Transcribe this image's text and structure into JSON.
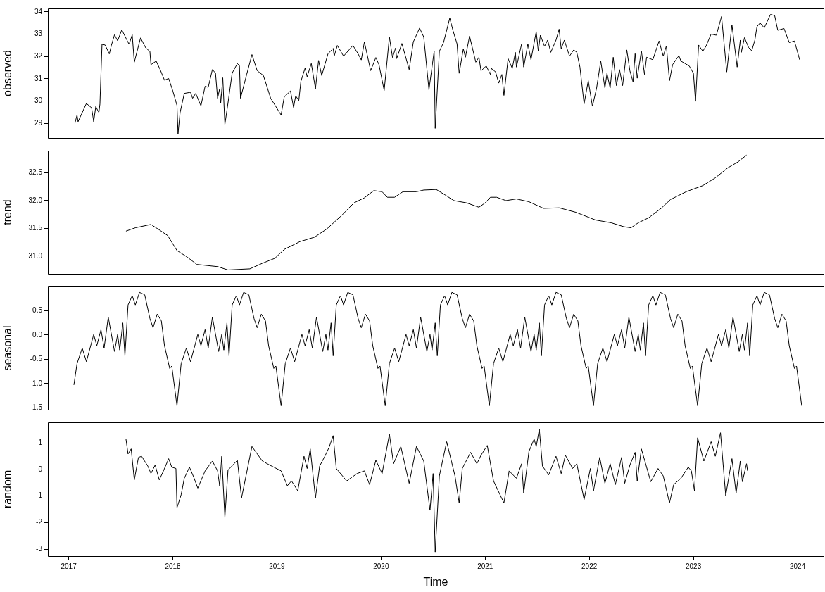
{
  "chart_data": [
    {
      "type": "line",
      "ylabel": "observed",
      "color": "#000000",
      "xlim": [
        2016.8,
        2024.25
      ],
      "xticks": [
        2017,
        2018,
        2019,
        2020,
        2021,
        2022,
        2023,
        2024
      ],
      "ylim": [
        28.34,
        34.15
      ],
      "yticks": [
        29,
        30,
        31,
        32,
        33,
        34
      ],
      "tick_labels": "y",
      "x": [
        2017.06,
        2017.08,
        2017.09,
        2017.17,
        2017.22,
        2017.24,
        2017.26,
        2017.29,
        2017.3,
        2017.32,
        2017.35,
        2017.39,
        2017.41,
        2017.44,
        2017.47,
        2017.51,
        2017.58,
        2017.61,
        2017.63,
        2017.69,
        2017.74,
        2017.78,
        2017.79,
        2017.84,
        2017.88,
        2017.92,
        2017.96,
        2018.0,
        2018.04,
        2018.05,
        2018.07,
        2018.11,
        2018.17,
        2018.19,
        2018.22,
        2018.27,
        2018.31,
        2018.34,
        2018.38,
        2018.41,
        2018.43,
        2018.45,
        2018.46,
        2018.48,
        2018.5,
        2018.53,
        2018.57,
        2018.62,
        2018.64,
        2018.65,
        2018.71,
        2018.76,
        2018.81,
        2018.87,
        2018.94,
        2019.04,
        2019.07,
        2019.13,
        2019.16,
        2019.18,
        2019.21,
        2019.23,
        2019.27,
        2019.29,
        2019.33,
        2019.37,
        2019.4,
        2019.43,
        2019.49,
        2019.54,
        2019.55,
        2019.58,
        2019.64,
        2019.73,
        2019.78,
        2019.81,
        2019.84,
        2019.9,
        2019.95,
        2019.98,
        2020.03,
        2020.08,
        2020.11,
        2020.14,
        2020.15,
        2020.2,
        2020.27,
        2020.31,
        2020.37,
        2020.41,
        2020.46,
        2020.51,
        2020.52,
        2020.56,
        2020.6,
        2020.66,
        2020.69,
        2020.73,
        2020.75,
        2020.79,
        2020.81,
        2020.85,
        2020.91,
        2020.94,
        2020.96,
        2021.01,
        2021.05,
        2021.06,
        2021.1,
        2021.13,
        2021.16,
        2021.18,
        2021.22,
        2021.26,
        2021.29,
        2021.3,
        2021.35,
        2021.37,
        2021.41,
        2021.44,
        2021.49,
        2021.51,
        2021.53,
        2021.57,
        2021.6,
        2021.63,
        2021.68,
        2021.71,
        2021.73,
        2021.76,
        2021.81,
        2021.85,
        2021.88,
        2021.91,
        2021.95,
        2021.99,
        2022.03,
        2022.07,
        2022.11,
        2022.15,
        2022.17,
        2022.2,
        2022.23,
        2022.26,
        2022.29,
        2022.32,
        2022.36,
        2022.39,
        2022.42,
        2022.44,
        2022.46,
        2022.5,
        2022.53,
        2022.55,
        2022.61,
        2022.67,
        2022.71,
        2022.74,
        2022.77,
        2022.8,
        2022.86,
        2022.88,
        2022.96,
        2023.0,
        2023.02,
        2023.05,
        2023.09,
        2023.12,
        2023.17,
        2023.22,
        2023.27,
        2023.32,
        2023.37,
        2023.42,
        2023.45,
        2023.46,
        2023.49,
        2023.53,
        2023.56,
        2023.59,
        2023.61,
        2023.64,
        2023.68,
        2023.74,
        2023.78,
        2023.81,
        2023.87,
        2023.92,
        2023.97,
        2024.02
      ],
      "values": [
        29.0,
        29.37,
        29.07,
        29.89,
        29.69,
        29.07,
        29.75,
        29.48,
        29.86,
        32.54,
        32.51,
        32.11,
        32.49,
        32.97,
        32.7,
        33.19,
        32.54,
        32.97,
        31.74,
        32.83,
        32.38,
        32.22,
        31.63,
        31.79,
        31.39,
        30.93,
        31.01,
        30.45,
        29.8,
        28.53,
        29.48,
        30.34,
        30.39,
        30.12,
        30.34,
        29.78,
        30.66,
        30.61,
        31.41,
        31.25,
        30.12,
        30.55,
        29.91,
        31.04,
        28.94,
        29.91,
        31.25,
        31.68,
        31.58,
        30.12,
        31.2,
        32.08,
        31.36,
        31.14,
        30.12,
        29.37,
        30.18,
        30.45,
        29.71,
        30.23,
        30.02,
        30.88,
        31.47,
        31.09,
        31.68,
        30.55,
        31.82,
        31.14,
        32.11,
        32.36,
        32.01,
        32.49,
        32.01,
        32.49,
        32.11,
        31.84,
        32.65,
        31.36,
        31.95,
        31.63,
        30.47,
        32.87,
        31.95,
        32.38,
        31.9,
        32.58,
        31.41,
        32.65,
        33.27,
        32.87,
        30.5,
        32.23,
        28.77,
        32.23,
        32.62,
        33.72,
        33.17,
        32.56,
        31.24,
        32.34,
        31.96,
        32.91,
        31.74,
        31.96,
        31.35,
        31.57,
        31.19,
        31.46,
        31.3,
        30.8,
        31.19,
        30.25,
        31.9,
        31.46,
        32.18,
        31.52,
        32.56,
        31.52,
        32.56,
        31.85,
        33.11,
        32.23,
        32.95,
        32.45,
        32.73,
        32.18,
        32.73,
        33.22,
        32.34,
        32.73,
        32.01,
        32.29,
        32.18,
        31.52,
        29.87,
        30.91,
        29.76,
        30.58,
        31.79,
        30.58,
        31.24,
        30.58,
        31.96,
        30.69,
        31.41,
        30.69,
        32.29,
        31.35,
        30.86,
        32.12,
        31.02,
        32.25,
        31.19,
        31.96,
        31.85,
        32.69,
        32.01,
        32.47,
        30.91,
        31.63,
        32.03,
        31.79,
        31.57,
        31.24,
        29.98,
        32.51,
        32.23,
        32.45,
        33.0,
        32.95,
        33.79,
        31.3,
        33.42,
        31.52,
        32.73,
        32.18,
        32.84,
        32.4,
        32.25,
        32.73,
        33.33,
        33.5,
        33.28,
        33.88,
        33.83,
        33.17,
        33.25,
        32.62,
        32.69,
        31.85
      ]
    },
    {
      "type": "line",
      "ylabel": "trend",
      "color": "#000000",
      "xlim": [
        2016.8,
        2024.25
      ],
      "xticks": [
        2017,
        2018,
        2019,
        2020,
        2021,
        2022,
        2023,
        2024
      ],
      "ylim": [
        30.68,
        32.9
      ],
      "yticks": [
        {
          "value": 31,
          "label": "31.0"
        },
        31.5,
        {
          "value": 32,
          "label": "32.0"
        },
        32.5
      ],
      "tick_labels": "y",
      "x": [
        2017.55,
        2017.64,
        2017.79,
        2017.88,
        2017.95,
        2018.04,
        2018.14,
        2018.23,
        2018.43,
        2018.53,
        2018.74,
        2018.86,
        2018.98,
        2019.07,
        2019.22,
        2019.36,
        2019.48,
        2019.62,
        2019.74,
        2019.84,
        2019.93,
        2020.01,
        2020.06,
        2020.13,
        2020.21,
        2020.34,
        2020.41,
        2020.53,
        2020.6,
        2020.7,
        2020.82,
        2020.94,
        2021.0,
        2021.05,
        2021.11,
        2021.2,
        2021.3,
        2021.42,
        2021.56,
        2021.71,
        2021.87,
        2022.06,
        2022.21,
        2022.33,
        2022.4,
        2022.47,
        2022.57,
        2022.69,
        2022.78,
        2022.93,
        2023.09,
        2023.21,
        2023.33,
        2023.43,
        2023.51
      ],
      "values": [
        31.45,
        31.51,
        31.57,
        31.46,
        31.37,
        31.1,
        30.98,
        30.85,
        30.81,
        30.75,
        30.77,
        30.87,
        30.96,
        31.12,
        31.26,
        31.34,
        31.49,
        31.73,
        31.96,
        32.05,
        32.18,
        32.16,
        32.06,
        32.06,
        32.16,
        32.16,
        32.19,
        32.2,
        32.12,
        32.0,
        31.96,
        31.88,
        31.96,
        32.06,
        32.06,
        32.0,
        32.03,
        31.98,
        31.86,
        31.87,
        31.79,
        31.65,
        31.6,
        31.53,
        31.51,
        31.6,
        31.69,
        31.86,
        32.02,
        32.16,
        32.27,
        32.41,
        32.59,
        32.7,
        32.82
      ]
    },
    {
      "type": "line",
      "ylabel": "seasonal",
      "color": "#000000",
      "xlim": [
        2016.8,
        2024.25
      ],
      "xticks": [
        2017,
        2018,
        2019,
        2020,
        2021,
        2022,
        2023,
        2024
      ],
      "ylim": [
        -1.54,
        1.0
      ],
      "yticks": [
        {
          "value": -1.5,
          "label": "-1.5"
        },
        {
          "value": -1,
          "label": "-1.0"
        },
        -0.5,
        {
          "value": 0,
          "label": "0.0"
        },
        0.5
      ],
      "tick_labels": "y",
      "x": [
        2017.05,
        2017.08,
        2017.13,
        2017.17,
        2017.24,
        2017.27,
        2017.31,
        2017.34,
        2017.38,
        2017.44,
        2017.47,
        2017.49,
        2017.52,
        2017.54,
        2017.57,
        2017.61,
        2017.64,
        2017.68,
        2017.73,
        2017.78,
        2017.81,
        2017.85,
        2017.89,
        2017.92,
        2017.97,
        2017.99,
        2018.04,
        2018.08,
        2018.13,
        2018.17,
        2018.24,
        2018.27,
        2018.31,
        2018.34,
        2018.38,
        2018.44,
        2018.47,
        2018.49,
        2018.52,
        2018.54,
        2018.57,
        2018.61,
        2018.64,
        2018.68,
        2018.73,
        2018.78,
        2018.81,
        2018.85,
        2018.89,
        2018.92,
        2018.97,
        2018.99,
        2019.04,
        2019.08,
        2019.13,
        2019.17,
        2019.24,
        2019.27,
        2019.31,
        2019.34,
        2019.38,
        2019.44,
        2019.47,
        2019.49,
        2019.52,
        2019.54,
        2019.57,
        2019.61,
        2019.64,
        2019.68,
        2019.73,
        2019.78,
        2019.81,
        2019.85,
        2019.89,
        2019.92,
        2019.97,
        2019.99,
        2020.04,
        2020.08,
        2020.13,
        2020.17,
        2020.24,
        2020.27,
        2020.31,
        2020.34,
        2020.38,
        2020.44,
        2020.47,
        2020.49,
        2020.52,
        2020.54,
        2020.57,
        2020.61,
        2020.64,
        2020.68,
        2020.73,
        2020.78,
        2020.81,
        2020.85,
        2020.89,
        2020.92,
        2020.97,
        2020.99,
        2021.04,
        2021.08,
        2021.13,
        2021.17,
        2021.24,
        2021.27,
        2021.31,
        2021.34,
        2021.38,
        2021.44,
        2021.47,
        2021.49,
        2021.52,
        2021.54,
        2021.57,
        2021.61,
        2021.64,
        2021.68,
        2021.73,
        2021.78,
        2021.81,
        2021.85,
        2021.89,
        2021.92,
        2021.97,
        2021.99,
        2022.04,
        2022.08,
        2022.13,
        2022.17,
        2022.24,
        2022.27,
        2022.31,
        2022.34,
        2022.38,
        2022.44,
        2022.47,
        2022.49,
        2022.52,
        2022.54,
        2022.57,
        2022.61,
        2022.64,
        2022.68,
        2022.73,
        2022.78,
        2022.81,
        2022.85,
        2022.89,
        2022.92,
        2022.97,
        2022.99,
        2023.04,
        2023.08,
        2023.13,
        2023.17,
        2023.24,
        2023.27,
        2023.31,
        2023.34,
        2023.38,
        2023.44,
        2023.47,
        2023.49,
        2023.52,
        2023.54,
        2023.57,
        2023.61,
        2023.64,
        2023.68,
        2023.73,
        2023.78,
        2023.81,
        2023.85,
        2023.89,
        2023.92,
        2023.97,
        2023.99,
        2024.04
      ],
      "values": [
        -1.03,
        -0.59,
        -0.27,
        -0.55,
        0.01,
        -0.22,
        0.11,
        -0.27,
        0.37,
        -0.34,
        0.01,
        -0.31,
        0.25,
        -0.43,
        0.62,
        0.81,
        0.62,
        0.88,
        0.83,
        0.34,
        0.15,
        0.43,
        0.29,
        -0.22,
        -0.69,
        -0.64,
        -1.46,
        -0.59,
        -0.27,
        -0.55,
        0.01,
        -0.22,
        0.11,
        -0.27,
        0.37,
        -0.34,
        0.01,
        -0.31,
        0.25,
        -0.43,
        0.62,
        0.81,
        0.62,
        0.88,
        0.83,
        0.34,
        0.15,
        0.43,
        0.29,
        -0.22,
        -0.69,
        -0.64,
        -1.46,
        -0.59,
        -0.27,
        -0.55,
        0.01,
        -0.22,
        0.11,
        -0.27,
        0.37,
        -0.34,
        0.01,
        -0.31,
        0.25,
        -0.43,
        0.62,
        0.81,
        0.62,
        0.88,
        0.83,
        0.34,
        0.15,
        0.43,
        0.29,
        -0.22,
        -0.69,
        -0.64,
        -1.46,
        -0.59,
        -0.27,
        -0.55,
        0.01,
        -0.22,
        0.11,
        -0.27,
        0.37,
        -0.34,
        0.01,
        -0.31,
        0.25,
        -0.43,
        0.62,
        0.81,
        0.62,
        0.88,
        0.83,
        0.34,
        0.15,
        0.43,
        0.29,
        -0.22,
        -0.69,
        -0.64,
        -1.46,
        -0.59,
        -0.27,
        -0.55,
        0.01,
        -0.22,
        0.11,
        -0.27,
        0.37,
        -0.34,
        0.01,
        -0.31,
        0.25,
        -0.43,
        0.62,
        0.81,
        0.62,
        0.88,
        0.83,
        0.34,
        0.15,
        0.43,
        0.29,
        -0.22,
        -0.69,
        -0.64,
        -1.46,
        -0.59,
        -0.27,
        -0.55,
        0.01,
        -0.22,
        0.11,
        -0.27,
        0.37,
        -0.34,
        0.01,
        -0.31,
        0.25,
        -0.43,
        0.62,
        0.81,
        0.62,
        0.88,
        0.83,
        0.34,
        0.15,
        0.43,
        0.29,
        -0.22,
        -0.69,
        -0.64,
        -1.46,
        -0.59,
        -0.27,
        -0.55,
        0.01,
        -0.22,
        0.11,
        -0.27,
        0.37,
        -0.34,
        0.01,
        -0.31,
        0.25,
        -0.43,
        0.62,
        0.81,
        0.62,
        0.88,
        0.83,
        0.34,
        0.15,
        0.43,
        0.29,
        -0.22,
        -0.69,
        -0.64,
        -1.46
      ]
    },
    {
      "type": "line",
      "ylabel": "random",
      "xlabel": "Time",
      "color": "#000000",
      "xlim": [
        2016.8,
        2024.25
      ],
      "xticks": [
        2017,
        2018,
        2019,
        2020,
        2021,
        2022,
        2023,
        2024
      ],
      "ylim": [
        -3.26,
        1.78
      ],
      "yticks": [
        -3,
        -2,
        -1,
        0,
        1
      ],
      "x": [
        2017.55,
        2017.57,
        2017.6,
        2017.63,
        2017.67,
        2017.7,
        2017.76,
        2017.79,
        2017.83,
        2017.87,
        2017.91,
        2017.96,
        2017.99,
        2018.03,
        2018.04,
        2018.08,
        2018.11,
        2018.16,
        2018.2,
        2018.24,
        2018.31,
        2018.38,
        2018.43,
        2018.45,
        2018.47,
        2018.5,
        2018.53,
        2018.62,
        2018.66,
        2018.76,
        2018.86,
        2018.93,
        2019.04,
        2019.1,
        2019.14,
        2019.2,
        2019.26,
        2019.29,
        2019.32,
        2019.37,
        2019.41,
        2019.46,
        2019.5,
        2019.54,
        2019.57,
        2019.67,
        2019.77,
        2019.84,
        2019.89,
        2019.95,
        2020.01,
        2020.08,
        2020.12,
        2020.19,
        2020.27,
        2020.34,
        2020.41,
        2020.47,
        2020.5,
        2020.52,
        2020.56,
        2020.63,
        2020.71,
        2020.75,
        2020.78,
        2020.86,
        2020.92,
        2020.96,
        2021.02,
        2021.08,
        2021.18,
        2021.23,
        2021.3,
        2021.35,
        2021.37,
        2021.42,
        2021.47,
        2021.49,
        2021.52,
        2021.55,
        2021.61,
        2021.68,
        2021.73,
        2021.77,
        2021.84,
        2021.88,
        2021.95,
        2022.01,
        2022.04,
        2022.1,
        2022.15,
        2022.2,
        2022.25,
        2022.31,
        2022.34,
        2022.39,
        2022.44,
        2022.46,
        2022.5,
        2022.59,
        2022.66,
        2022.71,
        2022.77,
        2022.81,
        2022.88,
        2022.95,
        2022.98,
        2023.01,
        2023.04,
        2023.1,
        2023.17,
        2023.21,
        2023.26,
        2023.31,
        2023.37,
        2023.41,
        2023.45,
        2023.47,
        2023.51,
        2023.52
      ],
      "values": [
        1.15,
        0.59,
        0.78,
        -0.39,
        0.46,
        0.5,
        0.13,
        -0.15,
        0.17,
        -0.39,
        -0.05,
        0.41,
        0.09,
        0.04,
        -1.44,
        -0.95,
        -0.33,
        0.09,
        -0.28,
        -0.7,
        -0.05,
        0.32,
        -0.05,
        -0.61,
        0.5,
        -1.81,
        -0.02,
        0.35,
        -1.07,
        0.87,
        0.32,
        0.17,
        -0.05,
        -0.61,
        -0.43,
        -0.8,
        0.5,
        0.04,
        0.78,
        -1.07,
        0.13,
        0.5,
        0.83,
        1.28,
        0.04,
        -0.43,
        -0.15,
        -0.05,
        -0.57,
        0.35,
        -0.15,
        1.33,
        0.22,
        0.87,
        -0.52,
        0.87,
        0.32,
        -1.54,
        -0.15,
        -3.11,
        -0.24,
        1.05,
        -0.24,
        -1.26,
        0.04,
        0.65,
        0.22,
        0.54,
        0.91,
        -0.43,
        -1.26,
        -0.05,
        -0.33,
        0.22,
        -0.89,
        0.68,
        1.15,
        0.87,
        1.52,
        0.13,
        -0.2,
        0.5,
        -0.15,
        0.54,
        0.04,
        0.22,
        -1.13,
        0.04,
        -0.8,
        0.46,
        -0.52,
        0.22,
        -0.57,
        0.46,
        -0.52,
        0.17,
        0.65,
        -0.43,
        0.78,
        -0.46,
        0.04,
        -0.24,
        -1.26,
        -0.57,
        -0.33,
        0.09,
        -0.05,
        -0.8,
        1.2,
        0.32,
        1.05,
        0.5,
        1.39,
        -0.98,
        0.41,
        -0.89,
        0.32,
        -0.46,
        0.22,
        -0.05
      ]
    }
  ]
}
